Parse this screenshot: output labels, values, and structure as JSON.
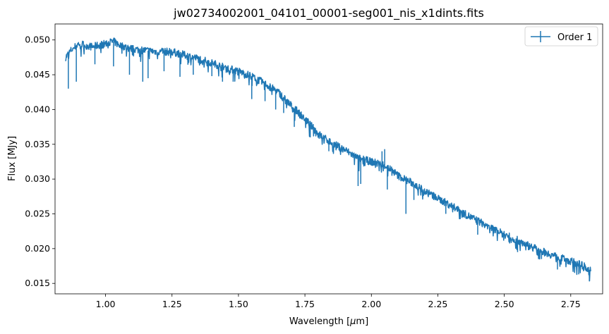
{
  "chart_data": {
    "type": "line",
    "title": "jw02734002001_04101_00001-seg001_nis_x1dints.fits",
    "xlabel_prefix": "Wavelength [",
    "xlabel_mu": "μ",
    "xlabel_suffix": "m]",
    "ylabel": "Flux [MJy]",
    "xlim": [
      0.81,
      2.87
    ],
    "ylim": [
      0.0135,
      0.0523
    ],
    "xticks": [
      1.0,
      1.25,
      1.5,
      1.75,
      2.0,
      2.25,
      2.5,
      2.75
    ],
    "xtick_labels": [
      "1.00",
      "1.25",
      "1.50",
      "1.75",
      "2.00",
      "2.25",
      "2.50",
      "2.75"
    ],
    "yticks": [
      0.015,
      0.02,
      0.025,
      0.03,
      0.035,
      0.04,
      0.045,
      0.05
    ],
    "ytick_labels": [
      "0.015",
      "0.020",
      "0.025",
      "0.030",
      "0.035",
      "0.040",
      "0.045",
      "0.050"
    ],
    "legend": {
      "position": "top-right",
      "entries": [
        "Order 1"
      ]
    },
    "series": [
      {
        "name": "Order 1",
        "color": "#1f77b4",
        "x": [
          0.85,
          0.87,
          0.9,
          0.95,
          1.0,
          1.03,
          1.05,
          1.1,
          1.15,
          1.2,
          1.25,
          1.3,
          1.35,
          1.4,
          1.45,
          1.5,
          1.55,
          1.6,
          1.65,
          1.7,
          1.75,
          1.8,
          1.85,
          1.9,
          1.95,
          2.0,
          2.03,
          2.05,
          2.08,
          2.1,
          2.15,
          2.2,
          2.25,
          2.3,
          2.35,
          2.4,
          2.45,
          2.5,
          2.55,
          2.6,
          2.65,
          2.7,
          2.75,
          2.8,
          2.825
        ],
        "y": [
          0.0475,
          0.0485,
          0.0495,
          0.049,
          0.0495,
          0.0498,
          0.0493,
          0.0487,
          0.0485,
          0.0483,
          0.0483,
          0.0478,
          0.0473,
          0.0467,
          0.046,
          0.0455,
          0.0448,
          0.0437,
          0.0425,
          0.0405,
          0.0387,
          0.0365,
          0.0352,
          0.0342,
          0.033,
          0.0325,
          0.0322,
          0.032,
          0.0312,
          0.0305,
          0.0295,
          0.0283,
          0.0272,
          0.0262,
          0.025,
          0.024,
          0.023,
          0.022,
          0.0212,
          0.0203,
          0.0195,
          0.0188,
          0.0182,
          0.0175,
          0.0168
        ]
      }
    ],
    "absorption_dips": [
      {
        "x": 0.86,
        "y": 0.043
      },
      {
        "x": 0.89,
        "y": 0.044
      },
      {
        "x": 0.96,
        "y": 0.0465
      },
      {
        "x": 1.03,
        "y": 0.0462
      },
      {
        "x": 1.09,
        "y": 0.045
      },
      {
        "x": 1.14,
        "y": 0.044
      },
      {
        "x": 1.16,
        "y": 0.0445
      },
      {
        "x": 1.22,
        "y": 0.0455
      },
      {
        "x": 1.28,
        "y": 0.0447
      },
      {
        "x": 1.33,
        "y": 0.045
      },
      {
        "x": 1.4,
        "y": 0.0448
      },
      {
        "x": 1.44,
        "y": 0.044
      },
      {
        "x": 1.48,
        "y": 0.044
      },
      {
        "x": 1.55,
        "y": 0.0415
      },
      {
        "x": 1.6,
        "y": 0.0412
      },
      {
        "x": 1.64,
        "y": 0.04
      },
      {
        "x": 1.67,
        "y": 0.0395
      },
      {
        "x": 1.71,
        "y": 0.0375
      },
      {
        "x": 1.77,
        "y": 0.036
      },
      {
        "x": 1.84,
        "y": 0.034
      },
      {
        "x": 1.95,
        "y": 0.029
      },
      {
        "x": 1.96,
        "y": 0.0293
      },
      {
        "x": 2.06,
        "y": 0.0285
      },
      {
        "x": 2.13,
        "y": 0.025
      },
      {
        "x": 2.16,
        "y": 0.027
      },
      {
        "x": 2.28,
        "y": 0.025
      },
      {
        "x": 2.4,
        "y": 0.022
      },
      {
        "x": 2.55,
        "y": 0.0195
      },
      {
        "x": 2.64,
        "y": 0.0185
      },
      {
        "x": 2.7,
        "y": 0.017
      },
      {
        "x": 2.78,
        "y": 0.0163
      },
      {
        "x": 2.82,
        "y": 0.0153
      }
    ],
    "emission_spikes": [
      {
        "x": 2.04,
        "y": 0.034
      },
      {
        "x": 2.05,
        "y": 0.0343
      }
    ]
  }
}
